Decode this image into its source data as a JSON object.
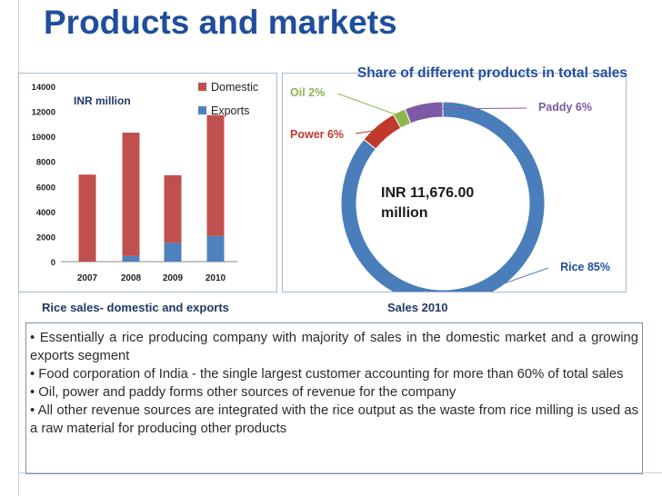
{
  "slide": {
    "title": "Products and markets"
  },
  "chart_data": [
    {
      "type": "bar",
      "stacked": true,
      "title": "Rice sales- domestic and exports",
      "ylabel": "INR million",
      "categories": [
        "2007",
        "2008",
        "2009",
        "2010"
      ],
      "series": [
        {
          "name": "Domestic",
          "values": [
            6950,
            9850,
            5400,
            9650
          ],
          "color": "#c0504d"
        },
        {
          "name": "Exports",
          "values": [
            0,
            450,
            1500,
            2050
          ],
          "color": "#4f81bd"
        }
      ],
      "ylim": [
        0,
        14000
      ],
      "yticks": [
        "0",
        "2000",
        "4000",
        "6000",
        "8000",
        "10000",
        "12000",
        "14000"
      ],
      "legend": "top-right"
    },
    {
      "type": "pie",
      "style": "doughnut",
      "title": "Share of different products in total sales",
      "caption": "Sales 2010",
      "center_label_line1": "INR 11,676.00",
      "center_label_line2": "million",
      "slices": [
        {
          "label": "Rice 85%",
          "value": 85,
          "color": "#4a7ebb"
        },
        {
          "label": "Power 6%",
          "value": 6,
          "color": "#c0392b"
        },
        {
          "label": "Oil 2%",
          "value": 2,
          "color": "#8db64c"
        },
        {
          "label": "Paddy 6%",
          "value": 6,
          "color": "#7d5aa6"
        }
      ]
    }
  ],
  "notes": [
    "• Essentially a rice producing company with majority of sales in the domestic market and a growing exports segment",
    "• Food corporation of India - the single largest customer accounting for more than 60% of total sales",
    "• Oil, power and paddy forms other sources of revenue for the company",
    "• All other revenue sources are integrated with the rice output as the waste from rice milling is used as a raw material for producing other products"
  ]
}
